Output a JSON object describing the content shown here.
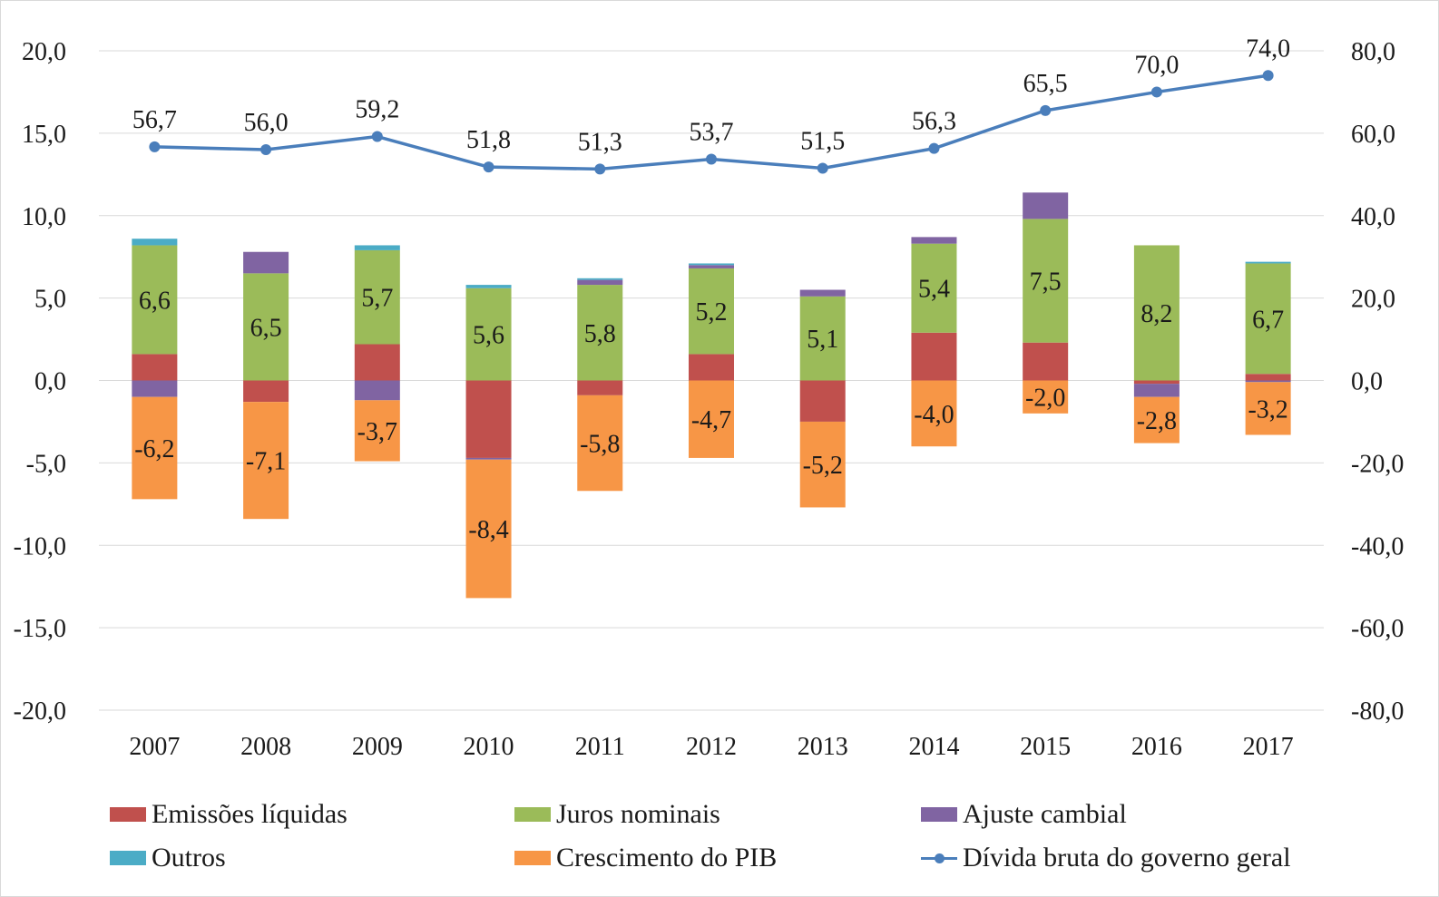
{
  "chart_data": {
    "type": "bar",
    "stacked": true,
    "categories": [
      "2007",
      "2008",
      "2009",
      "2010",
      "2011",
      "2012",
      "2013",
      "2014",
      "2015",
      "2016",
      "2017"
    ],
    "y_left": {
      "ylim": [
        -20,
        20
      ],
      "ticks": [
        "20,0",
        "15,0",
        "10,0",
        "5,0",
        "0,0",
        "-5,0",
        "-10,0",
        "-15,0",
        "-20,0"
      ]
    },
    "y_right": {
      "ylim": [
        -80,
        80
      ],
      "ticks": [
        "80,0",
        "60,0",
        "40,0",
        "20,0",
        "0,0",
        "-20,0",
        "-40,0",
        "-60,0",
        "-80,0"
      ]
    },
    "grid": true,
    "legend_position": "bottom",
    "series": [
      {
        "name": "Emissões líquidas",
        "color": "#c0504d",
        "axis": "left",
        "values": [
          1.6,
          -1.3,
          2.2,
          -4.7,
          -0.9,
          1.6,
          -2.5,
          2.9,
          2.3,
          -0.2,
          0.4
        ]
      },
      {
        "name": "Juros nominais",
        "color": "#9bbb59",
        "axis": "left",
        "values": [
          6.6,
          6.5,
          5.7,
          5.6,
          5.8,
          5.2,
          5.1,
          5.4,
          7.5,
          8.2,
          6.7
        ],
        "labels": [
          "6,6",
          "6,5",
          "5,7",
          "5,6",
          "5,8",
          "5,2",
          "5,1",
          "5,4",
          "7,5",
          "8,2",
          "6,7"
        ]
      },
      {
        "name": "Ajuste cambial",
        "color": "#8064a2",
        "axis": "left",
        "values": [
          -1.0,
          1.3,
          -1.2,
          -0.1,
          0.3,
          0.2,
          0.4,
          0.4,
          1.6,
          -0.8,
          -0.1
        ]
      },
      {
        "name": "Outros",
        "color": "#4bacc6",
        "axis": "left",
        "values": [
          0.4,
          0.0,
          0.3,
          0.2,
          0.1,
          0.1,
          0.0,
          0.0,
          0.0,
          0.0,
          0.1
        ]
      },
      {
        "name": "Crescimento do PIB",
        "color": "#f79646",
        "axis": "left",
        "values": [
          -6.2,
          -7.1,
          -3.7,
          -8.4,
          -5.8,
          -4.7,
          -5.2,
          -4.0,
          -2.0,
          -2.8,
          -3.2
        ],
        "labels": [
          "-6,2",
          "-7,1",
          "-3,7",
          "-8,4",
          "-5,8",
          "-4,7",
          "-5,2",
          "-4,0",
          "-2,0",
          "-2,8",
          "-3,2"
        ]
      }
    ],
    "line_series": {
      "name": "Dívida bruta do governo geral",
      "color": "#4a7ebb",
      "axis": "right",
      "values": [
        56.7,
        56.0,
        59.2,
        51.8,
        51.3,
        53.7,
        51.5,
        56.3,
        65.5,
        70.0,
        74.0
      ],
      "labels": [
        "56,7",
        "56,0",
        "59,2",
        "51,8",
        "51,3",
        "53,7",
        "51,5",
        "56,3",
        "65,5",
        "70,0",
        "74,0"
      ]
    }
  },
  "legend": {
    "items": [
      {
        "label": "Emissões líquidas",
        "color": "#c0504d"
      },
      {
        "label": "Juros nominais",
        "color": "#9bbb59"
      },
      {
        "label": "Ajuste cambial",
        "color": "#8064a2"
      },
      {
        "label": "Outros",
        "color": "#4bacc6"
      },
      {
        "label": "Crescimento do PIB",
        "color": "#f79646"
      }
    ],
    "line_item": {
      "label": "Dívida bruta do governo geral",
      "color": "#4a7ebb"
    }
  }
}
